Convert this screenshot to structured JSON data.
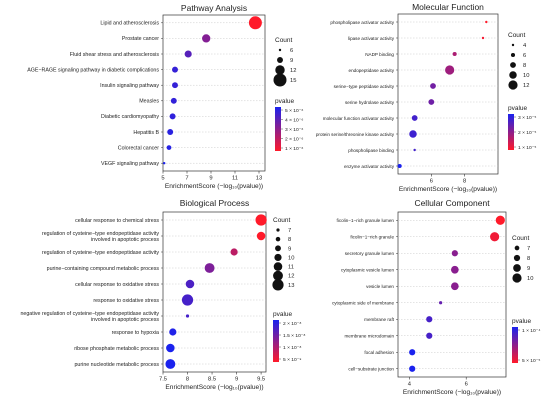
{
  "chart_data": [
    {
      "type": "scatter",
      "title": "Pathway Analysis",
      "xlabel": "EnrichmentScore (−log₁₀(pvalue))",
      "xlim": [
        5,
        13.5
      ],
      "xticks": [
        5,
        7,
        9,
        11,
        13
      ],
      "categories": [
        "Lipid and atherosclerosis",
        "Prostate cancer",
        "Fluid shear stress and atherosclerosis",
        "AGE−RAGE signaling pathway in diabetic complications",
        "Insulin signaling pathway",
        "Measles",
        "Diabetic cardiomyopathy",
        "Hepatitis B",
        "Colorectal cancer",
        "VEGF signaling pathway"
      ],
      "enrichment": [
        12.7,
        8.6,
        7.1,
        6.0,
        6.0,
        5.9,
        5.8,
        5.6,
        5.5,
        5.1
      ],
      "count": [
        15,
        11,
        10,
        9,
        9,
        9,
        9,
        9,
        8,
        6
      ],
      "pvalue_log10": [
        -12.7,
        -8.6,
        -7.1,
        -6.0,
        -6.0,
        -5.9,
        -5.8,
        -5.6,
        -5.5,
        -5.1
      ],
      "size_legend": {
        "title": "Count",
        "values": [
          6,
          9,
          12,
          15
        ]
      },
      "color_legend": {
        "title": "pvalue",
        "labels": [
          "5 × 10⁻⁶",
          "4 × 10⁻⁶",
          "3 × 10⁻⁶",
          "2 × 10⁻⁶",
          "1 × 10⁻⁶"
        ],
        "c_hi": "#1a22ee",
        "c_lo": "#ff1a2a"
      }
    },
    {
      "type": "scatter",
      "title": "Molecular Function",
      "xlabel": "EnrichmentScore (−log₁₀(pvalue))",
      "xlim": [
        4,
        10
      ],
      "xticks": [
        6,
        8
      ],
      "categories": [
        "phospholipase activator activity",
        "lipase activator activity",
        "NADP binding",
        "endopeptidase activity",
        "serine−type peptidase activity",
        "serine hydrolase activity",
        "molecular function activator activity",
        "protein serine/threonine kinase activity",
        "phospholipase binding",
        "enzyme activator activity"
      ],
      "enrichment": [
        9.3,
        9.1,
        7.4,
        7.1,
        6.1,
        6.0,
        5.0,
        4.9,
        5.0,
        4.1
      ],
      "count": [
        4,
        4,
        6,
        12,
        8,
        8,
        8,
        10,
        4,
        6
      ],
      "pvalue_log10": [
        -9.3,
        -9.1,
        -7.4,
        -7.1,
        -6.1,
        -6.0,
        -5.0,
        -4.9,
        -5.0,
        -4.1
      ],
      "size_legend": {
        "title": "Count",
        "values": [
          4,
          6,
          8,
          10,
          12
        ]
      },
      "color_legend": {
        "title": "pvalue",
        "labels": [
          "3 × 10⁻⁵",
          "2 × 10⁻⁵",
          "1 × 10⁻⁵"
        ],
        "c_hi": "#1a22ee",
        "c_lo": "#ff1a2a"
      }
    },
    {
      "type": "scatter",
      "title": "Biological Process",
      "xlabel": "EnrichmentScore (−log₁₀(pvalue))",
      "xlim": [
        7.5,
        9.6
      ],
      "xticks": [
        7.5,
        8.0,
        8.5,
        9.0,
        9.5
      ],
      "categories": [
        "cellular response to chemical stress",
        "regulation of cysteine−type endopeptidase activity involved in apoptotic process",
        "regulation of cysteine−type endopeptidase activity",
        "purine−containing compound metabolic process",
        "cellular response to oxidative stress",
        "response to oxidative stress",
        "negative regulation of cysteine−type endopeptidase activity involved in apoptotic process",
        "response to hypoxia",
        "ribose phosphate metabolic process",
        "purine nucleotide metabolic process"
      ],
      "enrichment": [
        9.5,
        9.5,
        8.95,
        8.45,
        8.05,
        8.0,
        8.0,
        7.7,
        7.65,
        7.65
      ],
      "count": [
        13,
        11,
        10,
        12,
        11,
        13,
        7,
        10,
        11,
        12
      ],
      "pvalue_log10": [
        -9.5,
        -9.5,
        -8.95,
        -8.45,
        -8.05,
        -8.0,
        -8.0,
        -7.7,
        -7.65,
        -7.65
      ],
      "size_legend": {
        "title": "Count",
        "values": [
          7,
          8,
          9,
          10,
          11,
          12,
          13
        ]
      },
      "color_legend": {
        "title": "pvalue",
        "labels": [
          "2 × 10⁻⁸",
          "1.5 × 10⁻⁸",
          "1 × 10⁻⁸",
          "5 × 10⁻⁹"
        ],
        "c_hi": "#1a22ee",
        "c_lo": "#ff1a2a"
      }
    },
    {
      "type": "scatter",
      "title": "Cellular Component",
      "xlabel": "EnrichmentScore (−log₁₀(pvalue))",
      "xlim": [
        3.6,
        7.4
      ],
      "xticks": [
        4,
        6
      ],
      "categories": [
        "ficolin−1−rich granule lumen",
        "ficolin−1−rich granule",
        "secretory granule lumen",
        "cytoplasmic vesicle lumen",
        "vesicle lumen",
        "cytoplasmic side of membrane",
        "membrane raft",
        "membrane microdomain",
        "focal adhesion",
        "cell−substrate junction"
      ],
      "enrichment": [
        7.2,
        7.0,
        5.6,
        5.6,
        5.6,
        5.1,
        4.7,
        4.7,
        4.1,
        4.1
      ],
      "count": [
        10,
        10,
        8,
        9,
        9,
        6,
        8,
        8,
        8,
        8
      ],
      "pvalue_log10": [
        -7.2,
        -7.0,
        -5.6,
        -5.6,
        -5.6,
        -5.1,
        -4.7,
        -4.7,
        -4.1,
        -4.1
      ],
      "size_legend": {
        "title": "Count",
        "values": [
          7,
          8,
          9,
          10
        ]
      },
      "color_legend": {
        "title": "pvalue",
        "labels": [
          "1 × 10⁻⁴",
          "5 × 10⁻⁵"
        ],
        "c_hi": "#1a22ee",
        "c_lo": "#ff1a2a"
      }
    }
  ]
}
